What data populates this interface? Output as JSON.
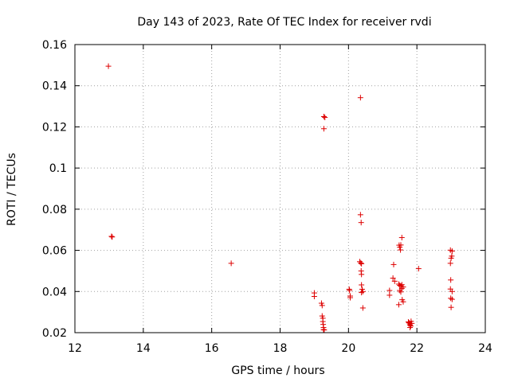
{
  "chart_data": {
    "type": "scatter",
    "title": "Day 143 of 2023, Rate Of TEC Index for receiver rvdi",
    "xlabel": "GPS time / hours",
    "ylabel": "ROTI / TECUs",
    "xlim": [
      12,
      24
    ],
    "ylim": [
      0.02,
      0.16
    ],
    "xticks": [
      12,
      14,
      16,
      18,
      20,
      22,
      24
    ],
    "yticks": [
      0.02,
      0.04,
      0.06,
      0.08,
      0.1,
      0.12,
      0.14,
      0.16
    ],
    "ytick_labels": [
      "0.02",
      "0.04",
      "0.06",
      "0.08",
      "0.1",
      "0.12",
      "0.14",
      "0.16"
    ],
    "grid": true,
    "marker": "+",
    "color": "#dd0000",
    "series": [
      {
        "name": "ROTI",
        "points": [
          [
            12.98,
            0.1495
          ],
          [
            13.07,
            0.0668
          ],
          [
            13.09,
            0.0665
          ],
          [
            16.57,
            0.0537
          ],
          [
            19.0,
            0.0393
          ],
          [
            19.0,
            0.0376
          ],
          [
            19.21,
            0.0343
          ],
          [
            19.23,
            0.0332
          ],
          [
            19.23,
            0.0281
          ],
          [
            19.25,
            0.027
          ],
          [
            19.25,
            0.0254
          ],
          [
            19.26,
            0.024
          ],
          [
            19.27,
            0.0225
          ],
          [
            19.27,
            0.0215
          ],
          [
            19.29,
            0.0213
          ],
          [
            19.28,
            0.125
          ],
          [
            19.31,
            0.1246
          ],
          [
            19.28,
            0.1191
          ],
          [
            20.02,
            0.0411
          ],
          [
            20.03,
            0.0405
          ],
          [
            20.05,
            0.0378
          ],
          [
            20.05,
            0.037
          ],
          [
            20.35,
            0.1342
          ],
          [
            20.35,
            0.0773
          ],
          [
            20.37,
            0.0735
          ],
          [
            20.33,
            0.0545
          ],
          [
            20.36,
            0.0539
          ],
          [
            20.38,
            0.0535
          ],
          [
            20.37,
            0.05
          ],
          [
            20.38,
            0.0483
          ],
          [
            20.38,
            0.0432
          ],
          [
            20.4,
            0.0411
          ],
          [
            20.42,
            0.04
          ],
          [
            20.38,
            0.0395
          ],
          [
            20.42,
            0.032
          ],
          [
            21.2,
            0.0405
          ],
          [
            21.2,
            0.0382
          ],
          [
            21.32,
            0.0531
          ],
          [
            21.3,
            0.0465
          ],
          [
            21.35,
            0.045
          ],
          [
            21.48,
            0.0625
          ],
          [
            21.5,
            0.0615
          ],
          [
            21.52,
            0.0602
          ],
          [
            21.53,
            0.0626
          ],
          [
            21.56,
            0.0662
          ],
          [
            21.47,
            0.0436
          ],
          [
            21.5,
            0.043
          ],
          [
            21.53,
            0.0427
          ],
          [
            21.56,
            0.0433
          ],
          [
            21.6,
            0.0422
          ],
          [
            21.5,
            0.0405
          ],
          [
            21.53,
            0.0398
          ],
          [
            21.56,
            0.0415
          ],
          [
            21.47,
            0.0336
          ],
          [
            21.57,
            0.036
          ],
          [
            21.6,
            0.035
          ],
          [
            21.75,
            0.0252
          ],
          [
            21.77,
            0.0248
          ],
          [
            21.79,
            0.0243
          ],
          [
            21.8,
            0.0237
          ],
          [
            21.82,
            0.0232
          ],
          [
            21.8,
            0.0225
          ],
          [
            21.83,
            0.0255
          ],
          [
            21.85,
            0.0245
          ],
          [
            22.05,
            0.0511
          ],
          [
            22.98,
            0.0601
          ],
          [
            23.03,
            0.0596
          ],
          [
            23.02,
            0.0572
          ],
          [
            23.0,
            0.0562
          ],
          [
            22.98,
            0.0537
          ],
          [
            22.99,
            0.0456
          ],
          [
            22.98,
            0.0412
          ],
          [
            23.03,
            0.04
          ],
          [
            22.99,
            0.0367
          ],
          [
            23.03,
            0.0362
          ],
          [
            23.0,
            0.0323
          ]
        ]
      }
    ]
  }
}
